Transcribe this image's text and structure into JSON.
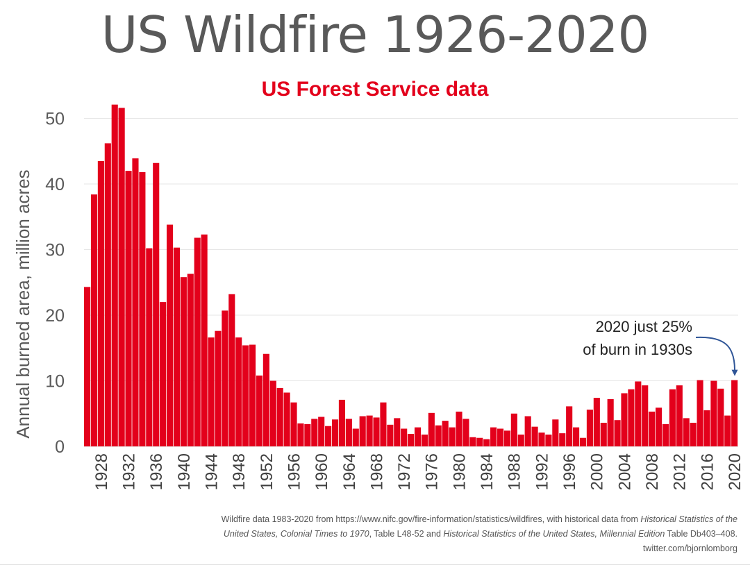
{
  "chart_data": {
    "type": "bar",
    "title": "US Wildfire 1926-2020",
    "subtitle": "US Forest Service data",
    "xlabel": "",
    "ylabel": "Annual burned area, million acres",
    "ylim": [
      0,
      53
    ],
    "yticks": [
      0,
      10,
      20,
      30,
      40,
      50
    ],
    "xticks": [
      1928,
      1932,
      1936,
      1940,
      1944,
      1948,
      1952,
      1956,
      1960,
      1964,
      1968,
      1972,
      1976,
      1980,
      1984,
      1988,
      1992,
      1996,
      2000,
      2004,
      2008,
      2012,
      2016,
      2020
    ],
    "grid": true,
    "bar_color": "#e3001b",
    "series": [
      {
        "x": [
          1926,
          1927,
          1928,
          1929,
          1930,
          1931,
          1932,
          1933,
          1934,
          1935,
          1936,
          1937,
          1938,
          1939,
          1940,
          1941,
          1942,
          1943,
          1944,
          1945,
          1946,
          1947,
          1948,
          1949,
          1950,
          1951,
          1952,
          1953,
          1954,
          1955,
          1956,
          1957,
          1958,
          1959,
          1960,
          1961,
          1962,
          1963,
          1964,
          1965,
          1966,
          1967,
          1968,
          1969,
          1970,
          1971,
          1972,
          1973,
          1974,
          1975,
          1976,
          1977,
          1978,
          1979,
          1980,
          1981,
          1982,
          1983,
          1984,
          1985,
          1986,
          1987,
          1988,
          1989,
          1990,
          1991,
          1992,
          1993,
          1994,
          1995,
          1996,
          1997,
          1998,
          1999,
          2000,
          2001,
          2002,
          2003,
          2004,
          2005,
          2006,
          2007,
          2008,
          2009,
          2010,
          2011,
          2012,
          2013,
          2014,
          2015,
          2016,
          2017,
          2018,
          2019,
          2020
        ],
        "values": [
          24.3,
          38.4,
          43.5,
          46.2,
          52.1,
          51.6,
          42.0,
          43.9,
          41.8,
          30.2,
          43.2,
          22.0,
          33.8,
          30.3,
          25.8,
          26.3,
          31.8,
          32.3,
          16.6,
          17.6,
          20.7,
          23.2,
          16.6,
          15.4,
          15.5,
          10.8,
          14.1,
          10.0,
          8.9,
          8.2,
          6.7,
          3.5,
          3.4,
          4.2,
          4.5,
          3.1,
          4.1,
          7.1,
          4.2,
          2.7,
          4.6,
          4.7,
          4.4,
          6.7,
          3.3,
          4.3,
          2.7,
          1.9,
          2.9,
          1.8,
          5.1,
          3.2,
          3.9,
          2.9,
          5.3,
          4.2,
          1.4,
          1.3,
          1.1,
          2.9,
          2.7,
          2.4,
          5.0,
          1.8,
          4.6,
          3.0,
          2.1,
          1.8,
          4.1,
          2.0,
          6.1,
          2.9,
          1.3,
          5.6,
          7.4,
          3.6,
          7.2,
          4.0,
          8.1,
          8.7,
          9.9,
          9.3,
          5.3,
          5.9,
          3.4,
          8.7,
          9.3,
          4.3,
          3.6,
          10.1,
          5.5,
          10.0,
          8.8,
          4.7,
          10.1
        ]
      }
    ],
    "annotation": {
      "line1": "2020 just 25%",
      "line2": "of burn in 1930s",
      "target_year": 2020
    }
  },
  "footnote": {
    "line1_plain": "Wildfire data 1983-2020 from https://www.nifc.gov/fire-information/statistics/wildfires, with historical data from ",
    "line1_italic": "Historical Statistics of the",
    "line2_italic_a": "United States, Colonial Times to 1970",
    "line2_plain_a": ", Table L48-52 and ",
    "line2_italic_b": "Historical Statistics of the United States, Millennial Edition",
    "line2_plain_b": " Table Db403–408.",
    "line3": "twitter.com/bjornlomborg"
  }
}
